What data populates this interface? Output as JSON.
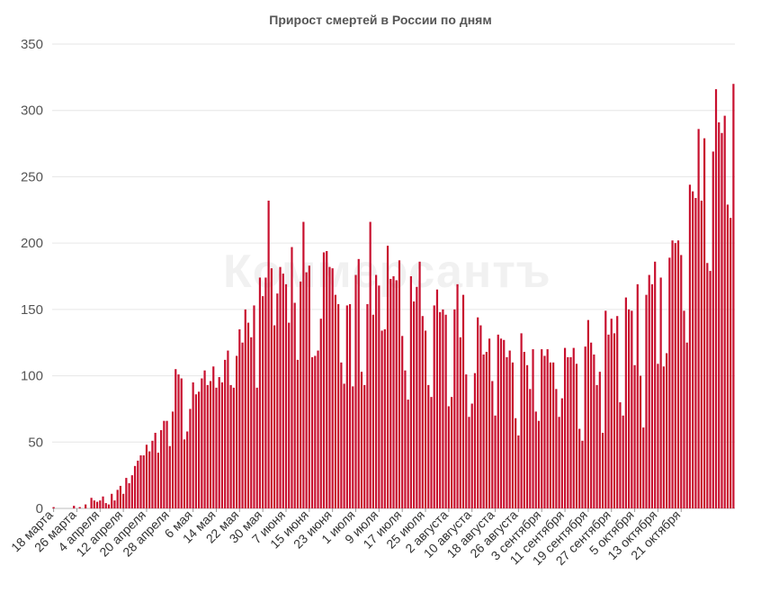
{
  "chart_data": {
    "type": "bar",
    "title": "Прирост смертей в России по дням",
    "watermark": "Коммерсантъ",
    "bar_color": "#c8102e",
    "grid_color": "#e6e6e6",
    "ylim": [
      0,
      350
    ],
    "yticks": [
      0,
      50,
      100,
      150,
      200,
      250,
      300,
      350
    ],
    "x_tick_labels": [
      "18 марта",
      "26 марта",
      "4 апреля",
      "12 апреля",
      "20 апреля",
      "28 апреля",
      "6 мая",
      "14 мая",
      "22 мая",
      "30 мая",
      "7 июня",
      "15 июня",
      "23 июня",
      "1 июля",
      "9 июля",
      "17 июля",
      "25 июля",
      "2 августа",
      "10 августа",
      "18 августа",
      "26 августа",
      "3 сентября",
      "11 сентября",
      "19 сентября",
      "27 сентября",
      "5 октября",
      "13 октября",
      "21 октября"
    ],
    "values": [
      1,
      0,
      0,
      0,
      0,
      0,
      0,
      2,
      0,
      1,
      0,
      3,
      0,
      8,
      6,
      5,
      6,
      9,
      4,
      3,
      11,
      6,
      14,
      17,
      11,
      23,
      19,
      25,
      32,
      36,
      40,
      40,
      48,
      43,
      51,
      57,
      42,
      59,
      66,
      66,
      47,
      73,
      105,
      101,
      98,
      52,
      58,
      75,
      95,
      86,
      88,
      98,
      104,
      93,
      96,
      107,
      91,
      99,
      95,
      112,
      119,
      93,
      91,
      115,
      135,
      125,
      150,
      140,
      129,
      153,
      91,
      174,
      160,
      174,
      232,
      181,
      138,
      162,
      182,
      177,
      169,
      140,
      197,
      155,
      112,
      171,
      216,
      178,
      183,
      114,
      115,
      119,
      143,
      193,
      194,
      182,
      181,
      161,
      154,
      110,
      94,
      153,
      154,
      92,
      176,
      188,
      103,
      93,
      154,
      216,
      146,
      176,
      168,
      134,
      135,
      198,
      173,
      175,
      172,
      187,
      130,
      104,
      82,
      175,
      156,
      167,
      186,
      145,
      134,
      93,
      84,
      153,
      165,
      148,
      150,
      146,
      77,
      84,
      150,
      169,
      129,
      161,
      101,
      69,
      79,
      102,
      144,
      138,
      116,
      118,
      128,
      96,
      70,
      131,
      128,
      127,
      114,
      119,
      110,
      68,
      55,
      132,
      118,
      108,
      90,
      120,
      73,
      66,
      120,
      115,
      120,
      110,
      110,
      90,
      69,
      83,
      121,
      114,
      114,
      121,
      109,
      60,
      51,
      122,
      142,
      125,
      116,
      93,
      103,
      57,
      149,
      131,
      143,
      132,
      145,
      80,
      70,
      159,
      150,
      149,
      108,
      169,
      100,
      61,
      161,
      176,
      169,
      186,
      109,
      174,
      107,
      117,
      189,
      202,
      200,
      202,
      191,
      149,
      125,
      244,
      239,
      234,
      286,
      232,
      279,
      185,
      179,
      269,
      316,
      291,
      283,
      296,
      229,
      219,
      320
    ]
  }
}
